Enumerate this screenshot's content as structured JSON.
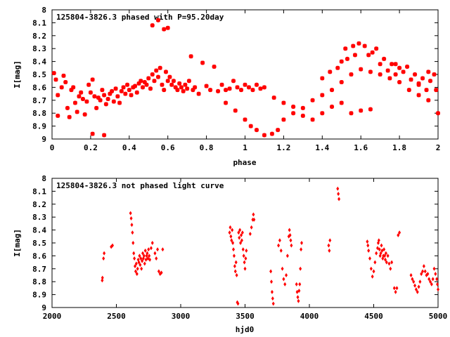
{
  "chart_data": [
    {
      "type": "scatter",
      "title": "125804-3826.3 phased with P=95.20day",
      "xlabel": "phase",
      "ylabel": "I[mag]",
      "xlim": [
        0,
        2
      ],
      "ylim": [
        9,
        8
      ],
      "y_inverted": true,
      "xticks": [
        "0",
        "0.2",
        "0.4",
        "0.6",
        "0.8",
        "1",
        "1.2",
        "1.4",
        "1.6",
        "1.8",
        "2"
      ],
      "yticks": [
        "8",
        "8.1",
        "8.2",
        "8.3",
        "8.4",
        "8.5",
        "8.6",
        "8.7",
        "8.8",
        "8.9",
        "9"
      ],
      "grid": false,
      "marker": "star",
      "color": "#ff0000",
      "points": [
        [
          0.01,
          8.49
        ],
        [
          0.02,
          8.54
        ],
        [
          0.03,
          8.66
        ],
        [
          0.03,
          8.82
        ],
        [
          0.05,
          8.6
        ],
        [
          0.06,
          8.51
        ],
        [
          0.07,
          8.56
        ],
        [
          0.08,
          8.76
        ],
        [
          0.09,
          8.83
        ],
        [
          0.1,
          8.62
        ],
        [
          0.11,
          8.6
        ],
        [
          0.12,
          8.72
        ],
        [
          0.13,
          8.79
        ],
        [
          0.14,
          8.67
        ],
        [
          0.15,
          8.64
        ],
        [
          0.16,
          8.69
        ],
        [
          0.17,
          8.81
        ],
        [
          0.18,
          8.71
        ],
        [
          0.19,
          8.58
        ],
        [
          0.2,
          8.64
        ],
        [
          0.21,
          8.54
        ],
        [
          0.22,
          8.67
        ],
        [
          0.23,
          8.76
        ],
        [
          0.24,
          8.68
        ],
        [
          0.25,
          8.7
        ],
        [
          0.26,
          8.62
        ],
        [
          0.27,
          8.66
        ],
        [
          0.28,
          8.73
        ],
        [
          0.29,
          8.69
        ],
        [
          0.3,
          8.65
        ],
        [
          0.31,
          8.63
        ],
        [
          0.32,
          8.71
        ],
        [
          0.33,
          8.61
        ],
        [
          0.34,
          8.67
        ],
        [
          0.35,
          8.72
        ],
        [
          0.36,
          8.63
        ],
        [
          0.37,
          8.6
        ],
        [
          0.38,
          8.65
        ],
        [
          0.39,
          8.58
        ],
        [
          0.4,
          8.62
        ],
        [
          0.41,
          8.66
        ],
        [
          0.42,
          8.6
        ],
        [
          0.43,
          8.59
        ],
        [
          0.44,
          8.64
        ],
        [
          0.45,
          8.57
        ],
        [
          0.46,
          8.55
        ],
        [
          0.47,
          8.6
        ],
        [
          0.48,
          8.56
        ],
        [
          0.49,
          8.58
        ],
        [
          0.5,
          8.53
        ],
        [
          0.51,
          8.61
        ],
        [
          0.52,
          8.5
        ],
        [
          0.53,
          8.55
        ],
        [
          0.54,
          8.47
        ],
        [
          0.55,
          8.52
        ],
        [
          0.56,
          8.45
        ],
        [
          0.57,
          8.58
        ],
        [
          0.58,
          8.62
        ],
        [
          0.59,
          8.48
        ],
        [
          0.6,
          8.55
        ],
        [
          0.61,
          8.52
        ],
        [
          0.62,
          8.58
        ],
        [
          0.63,
          8.55
        ],
        [
          0.64,
          8.6
        ],
        [
          0.65,
          8.62
        ],
        [
          0.66,
          8.57
        ],
        [
          0.67,
          8.6
        ],
        [
          0.68,
          8.63
        ],
        [
          0.69,
          8.58
        ],
        [
          0.7,
          8.61
        ],
        [
          0.71,
          8.55
        ],
        [
          0.72,
          8.36
        ],
        [
          0.73,
          8.62
        ],
        [
          0.74,
          8.6
        ],
        [
          0.76,
          8.65
        ],
        [
          0.78,
          8.41
        ],
        [
          0.8,
          8.59
        ],
        [
          0.82,
          8.62
        ],
        [
          0.84,
          8.44
        ],
        [
          0.86,
          8.63
        ],
        [
          0.88,
          8.58
        ],
        [
          0.9,
          8.62
        ],
        [
          0.92,
          8.61
        ],
        [
          0.94,
          8.55
        ],
        [
          0.96,
          8.6
        ],
        [
          0.98,
          8.62
        ],
        [
          1.0,
          8.58
        ],
        [
          1.02,
          8.6
        ],
        [
          1.04,
          8.62
        ],
        [
          1.06,
          8.58
        ],
        [
          1.08,
          8.61
        ],
        [
          1.1,
          8.6
        ],
        [
          0.21,
          8.96
        ],
        [
          0.27,
          8.97
        ],
        [
          0.52,
          8.12
        ],
        [
          0.55,
          8.08
        ],
        [
          0.58,
          8.15
        ],
        [
          0.6,
          8.14
        ],
        [
          0.9,
          8.72
        ],
        [
          0.95,
          8.78
        ],
        [
          1.0,
          8.85
        ],
        [
          1.03,
          8.9
        ],
        [
          1.06,
          8.93
        ],
        [
          1.1,
          8.97
        ],
        [
          1.14,
          8.96
        ],
        [
          1.17,
          8.93
        ],
        [
          1.2,
          8.85
        ],
        [
          1.25,
          8.8
        ],
        [
          1.3,
          8.76
        ],
        [
          1.35,
          8.7
        ],
        [
          1.4,
          8.66
        ],
        [
          1.45,
          8.62
        ],
        [
          1.5,
          8.56
        ],
        [
          1.55,
          8.5
        ],
        [
          1.6,
          8.46
        ],
        [
          1.65,
          8.48
        ],
        [
          1.7,
          8.5
        ],
        [
          1.75,
          8.53
        ],
        [
          1.8,
          8.56
        ],
        [
          1.85,
          8.62
        ],
        [
          1.9,
          8.66
        ],
        [
          1.95,
          8.7
        ],
        [
          2.0,
          8.8
        ],
        [
          1.15,
          8.68
        ],
        [
          1.2,
          8.72
        ],
        [
          1.25,
          8.75
        ],
        [
          1.3,
          8.82
        ],
        [
          1.35,
          8.85
        ],
        [
          1.4,
          8.8
        ],
        [
          1.45,
          8.75
        ],
        [
          1.5,
          8.72
        ],
        [
          1.55,
          8.8
        ],
        [
          1.6,
          8.78
        ],
        [
          1.65,
          8.77
        ],
        [
          1.52,
          8.3
        ],
        [
          1.56,
          8.28
        ],
        [
          1.59,
          8.26
        ],
        [
          1.62,
          8.28
        ],
        [
          1.64,
          8.35
        ],
        [
          1.66,
          8.33
        ],
        [
          1.68,
          8.3
        ],
        [
          1.72,
          8.38
        ],
        [
          1.76,
          8.42
        ],
        [
          1.8,
          8.45
        ],
        [
          1.84,
          8.44
        ],
        [
          1.88,
          8.5
        ],
        [
          1.92,
          8.53
        ],
        [
          1.96,
          8.55
        ],
        [
          1.99,
          8.62
        ],
        [
          1.4,
          8.53
        ],
        [
          1.44,
          8.48
        ],
        [
          1.48,
          8.45
        ],
        [
          1.5,
          8.4
        ],
        [
          1.53,
          8.38
        ],
        [
          1.57,
          8.35
        ],
        [
          1.7,
          8.42
        ],
        [
          1.74,
          8.47
        ],
        [
          1.78,
          8.5
        ],
        [
          1.82,
          8.48
        ],
        [
          1.86,
          8.54
        ],
        [
          1.9,
          8.57
        ],
        [
          1.94,
          8.62
        ],
        [
          1.98,
          8.5
        ],
        [
          1.78,
          8.42
        ],
        [
          1.9,
          8.58
        ],
        [
          1.95,
          8.48
        ]
      ]
    },
    {
      "type": "scatter",
      "title": "125804-3826.3 not phased light curve",
      "xlabel": "hjd0",
      "ylabel": "I[mag]",
      "xlim": [
        2000,
        5000
      ],
      "ylim": [
        9,
        8
      ],
      "y_inverted": true,
      "xticks": [
        "2000",
        "2500",
        "3000",
        "3500",
        "4000",
        "4500",
        "5000"
      ],
      "yticks": [
        "8",
        "8.1",
        "8.2",
        "8.3",
        "8.4",
        "8.5",
        "8.6",
        "8.7",
        "8.8",
        "8.9",
        "9"
      ],
      "grid": false,
      "marker": "diamond",
      "color": "#ff0000",
      "points": [
        [
          2390,
          8.79
        ],
        [
          2392,
          8.77
        ],
        [
          2400,
          8.62
        ],
        [
          2405,
          8.58
        ],
        [
          2460,
          8.53
        ],
        [
          2470,
          8.52
        ],
        [
          2610,
          8.27
        ],
        [
          2615,
          8.31
        ],
        [
          2620,
          8.36
        ],
        [
          2625,
          8.42
        ],
        [
          2630,
          8.5
        ],
        [
          2635,
          8.58
        ],
        [
          2640,
          8.62
        ],
        [
          2645,
          8.68
        ],
        [
          2650,
          8.72
        ],
        [
          2655,
          8.66
        ],
        [
          2660,
          8.74
        ],
        [
          2665,
          8.7
        ],
        [
          2670,
          8.63
        ],
        [
          2675,
          8.65
        ],
        [
          2680,
          8.6
        ],
        [
          2685,
          8.67
        ],
        [
          2690,
          8.62
        ],
        [
          2695,
          8.7
        ],
        [
          2700,
          8.64
        ],
        [
          2705,
          8.58
        ],
        [
          2710,
          8.62
        ],
        [
          2715,
          8.6
        ],
        [
          2720,
          8.66
        ],
        [
          2725,
          8.56
        ],
        [
          2730,
          8.63
        ],
        [
          2735,
          8.6
        ],
        [
          2740,
          8.58
        ],
        [
          2745,
          8.62
        ],
        [
          2750,
          8.55
        ],
        [
          2755,
          8.6
        ],
        [
          2760,
          8.63
        ],
        [
          2770,
          8.54
        ],
        [
          2780,
          8.5
        ],
        [
          2800,
          8.58
        ],
        [
          2810,
          8.62
        ],
        [
          2820,
          8.55
        ],
        [
          2830,
          8.72
        ],
        [
          2840,
          8.74
        ],
        [
          2850,
          8.73
        ],
        [
          2860,
          8.55
        ],
        [
          3380,
          8.42
        ],
        [
          3385,
          8.38
        ],
        [
          3390,
          8.45
        ],
        [
          3395,
          8.48
        ],
        [
          3400,
          8.4
        ],
        [
          3405,
          8.5
        ],
        [
          3410,
          8.55
        ],
        [
          3415,
          8.6
        ],
        [
          3420,
          8.68
        ],
        [
          3425,
          8.72
        ],
        [
          3430,
          8.65
        ],
        [
          3435,
          8.75
        ],
        [
          3440,
          8.96
        ],
        [
          3445,
          8.97
        ],
        [
          3450,
          8.42
        ],
        [
          3455,
          8.46
        ],
        [
          3460,
          8.4
        ],
        [
          3465,
          8.5
        ],
        [
          3470,
          8.44
        ],
        [
          3475,
          8.48
        ],
        [
          3480,
          8.42
        ],
        [
          3485,
          8.55
        ],
        [
          3490,
          8.6
        ],
        [
          3495,
          8.65
        ],
        [
          3500,
          8.7
        ],
        [
          3505,
          8.62
        ],
        [
          3510,
          8.56
        ],
        [
          3540,
          8.43
        ],
        [
          3550,
          8.38
        ],
        [
          3560,
          8.32
        ],
        [
          3565,
          8.28
        ],
        [
          3570,
          8.32
        ],
        [
          3700,
          8.72
        ],
        [
          3705,
          8.8
        ],
        [
          3710,
          8.88
        ],
        [
          3715,
          8.93
        ],
        [
          3720,
          8.97
        ],
        [
          3760,
          8.52
        ],
        [
          3770,
          8.48
        ],
        [
          3780,
          8.56
        ],
        [
          3790,
          8.7
        ],
        [
          3800,
          8.78
        ],
        [
          3810,
          8.82
        ],
        [
          3820,
          8.75
        ],
        [
          3830,
          8.6
        ],
        [
          3840,
          8.45
        ],
        [
          3845,
          8.4
        ],
        [
          3850,
          8.44
        ],
        [
          3855,
          8.48
        ],
        [
          3860,
          8.52
        ],
        [
          3900,
          8.82
        ],
        [
          3905,
          8.88
        ],
        [
          3910,
          8.92
        ],
        [
          3915,
          8.95
        ],
        [
          3920,
          8.87
        ],
        [
          3925,
          8.82
        ],
        [
          3930,
          8.7
        ],
        [
          3935,
          8.55
        ],
        [
          3940,
          8.5
        ],
        [
          4150,
          8.52
        ],
        [
          4155,
          8.56
        ],
        [
          4160,
          8.48
        ],
        [
          4220,
          8.08
        ],
        [
          4225,
          8.12
        ],
        [
          4230,
          8.16
        ],
        [
          4450,
          8.49
        ],
        [
          4455,
          8.52
        ],
        [
          4460,
          8.56
        ],
        [
          4470,
          8.62
        ],
        [
          4480,
          8.7
        ],
        [
          4490,
          8.76
        ],
        [
          4500,
          8.72
        ],
        [
          4510,
          8.65
        ],
        [
          4520,
          8.58
        ],
        [
          4530,
          8.54
        ],
        [
          4535,
          8.5
        ],
        [
          4540,
          8.48
        ],
        [
          4545,
          8.55
        ],
        [
          4550,
          8.6
        ],
        [
          4555,
          8.58
        ],
        [
          4560,
          8.52
        ],
        [
          4565,
          8.56
        ],
        [
          4570,
          8.62
        ],
        [
          4575,
          8.6
        ],
        [
          4580,
          8.55
        ],
        [
          4585,
          8.6
        ],
        [
          4590,
          8.63
        ],
        [
          4595,
          8.58
        ],
        [
          4600,
          8.65
        ],
        [
          4610,
          8.6
        ],
        [
          4620,
          8.66
        ],
        [
          4630,
          8.7
        ],
        [
          4640,
          8.65
        ],
        [
          4660,
          8.85
        ],
        [
          4670,
          8.88
        ],
        [
          4680,
          8.85
        ],
        [
          4690,
          8.44
        ],
        [
          4700,
          8.42
        ],
        [
          4790,
          8.75
        ],
        [
          4800,
          8.78
        ],
        [
          4810,
          8.8
        ],
        [
          4820,
          8.83
        ],
        [
          4830,
          8.86
        ],
        [
          4840,
          8.88
        ],
        [
          4850,
          8.84
        ],
        [
          4860,
          8.8
        ],
        [
          4870,
          8.74
        ],
        [
          4880,
          8.72
        ],
        [
          4890,
          8.68
        ],
        [
          4900,
          8.72
        ],
        [
          4910,
          8.75
        ],
        [
          4920,
          8.74
        ],
        [
          4930,
          8.78
        ],
        [
          4940,
          8.8
        ],
        [
          4950,
          8.82
        ],
        [
          4960,
          8.78
        ],
        [
          4970,
          8.7
        ],
        [
          4980,
          8.74
        ],
        [
          4990,
          8.78
        ],
        [
          4995,
          8.82
        ],
        [
          5000,
          8.86
        ]
      ]
    }
  ]
}
